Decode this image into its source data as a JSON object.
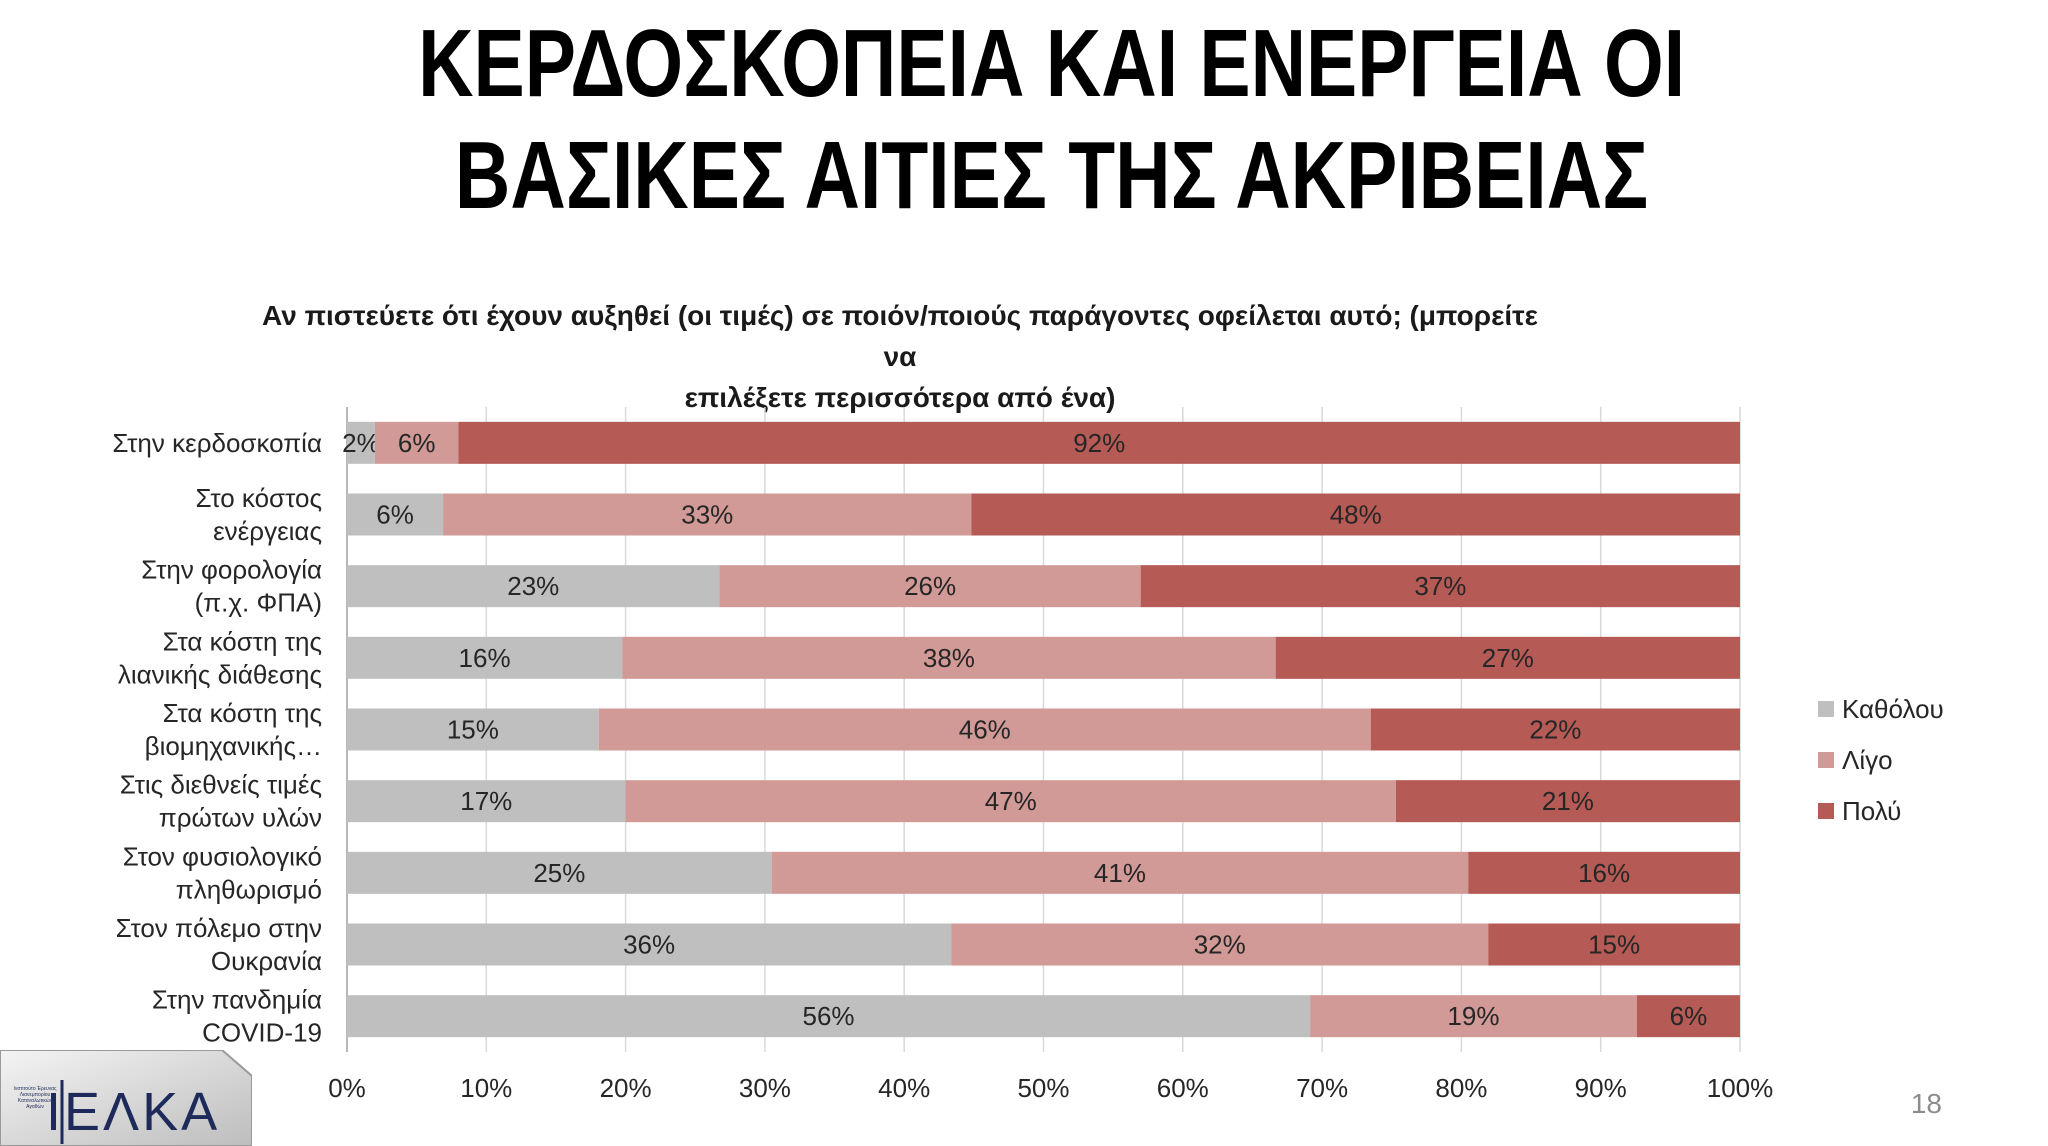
{
  "slide": {
    "title_line1": "ΚΕΡΔΟΣΚΟΠΕΙΑ ΚΑΙ ΕΝΕΡΓΕΙΑ ΟΙ",
    "title_line2": "ΒΑΣΙΚΕΣ ΑΙΤΙΕΣ ΤΗΣ ΑΚΡΙΒΕΙΑΣ",
    "page_number": "18"
  },
  "logo": {
    "text": "ΙΕΛΚΑ",
    "small_text": "Ινστιτούτο Έρευνας Λιανεμπορίου Καταναλωτικών Αγαθών"
  },
  "colors": {
    "katholou": "#bfbfbf",
    "ligo": "#d19a97",
    "poly": "#b55a55",
    "grid": "#d9d9d9"
  },
  "chart_data": {
    "type": "bar",
    "orientation": "horizontal",
    "stacked": true,
    "title": "Αν πιστεύετε ότι έχουν αυξηθεί (οι τιμές) σε ποιόν/ποιούς παράγοντες οφείλεται αυτό; (μπορείτε να επιλέξετε περισσότερα από ένα)",
    "categories": [
      [
        "Στην κερδοσκοπία"
      ],
      [
        "Στο κόστος",
        "ενέργειας"
      ],
      [
        "Στην φορολογία",
        "(π.χ. ΦΠΑ)"
      ],
      [
        "Στα κόστη της",
        "λιανικής διάθεσης"
      ],
      [
        "Στα κόστη της",
        "βιομηχανικής…"
      ],
      [
        "Στις διεθνείς τιμές",
        "πρώτων υλών"
      ],
      [
        "Στον φυσιολογικό",
        "πληθωρισμό"
      ],
      [
        "Στον πόλεμο στην",
        "Ουκρανία"
      ],
      [
        "Στην πανδημία",
        "COVID-19"
      ]
    ],
    "series": [
      {
        "name": "Καθόλου",
        "values": [
          2,
          6,
          23,
          16,
          15,
          17,
          25,
          36,
          56
        ]
      },
      {
        "name": "Λίγο",
        "values": [
          6,
          33,
          26,
          38,
          46,
          47,
          41,
          32,
          19
        ]
      },
      {
        "name": "Πολύ",
        "values": [
          92,
          48,
          37,
          27,
          22,
          21,
          16,
          15,
          6
        ]
      }
    ],
    "xticks": [
      "0%",
      "10%",
      "20%",
      "30%",
      "40%",
      "50%",
      "60%",
      "70%",
      "80%",
      "90%",
      "100%"
    ],
    "xlim": [
      0,
      100
    ],
    "percent_stacked": true,
    "grid": "vertical",
    "legend": "right"
  }
}
